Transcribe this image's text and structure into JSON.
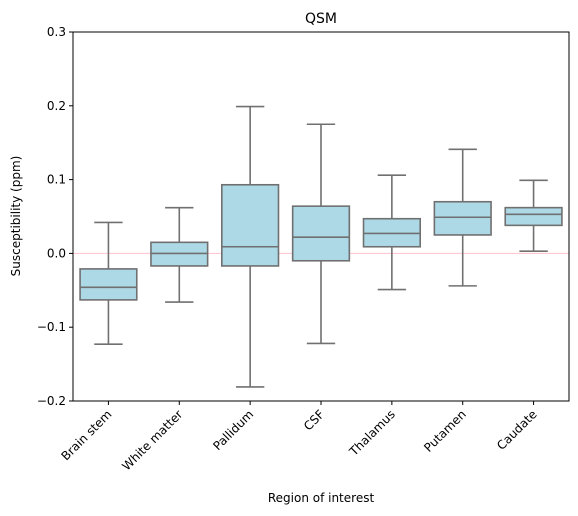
{
  "chart_data": {
    "type": "box",
    "title": "QSM",
    "xlabel": "Region of interest",
    "ylabel": "Susceptibility (ppm)",
    "ylim": [
      -0.2,
      0.3
    ],
    "yticks": [
      -0.2,
      -0.1,
      0.0,
      0.1,
      0.2,
      0.3
    ],
    "ytick_labels": [
      "−0.2",
      "−0.1",
      "0.0",
      "0.1",
      "0.2",
      "0.3"
    ],
    "reference_line": 0.0,
    "categories": [
      "Brain stem",
      "White matter",
      "Pallidum",
      "CSF",
      "Thalamus",
      "Putamen",
      "Caudate"
    ],
    "boxes": [
      {
        "whisker_low": -0.123,
        "q1": -0.063,
        "median": -0.046,
        "q3": -0.021,
        "whisker_high": 0.042
      },
      {
        "whisker_low": -0.066,
        "q1": -0.017,
        "median": 0.0,
        "q3": 0.015,
        "whisker_high": 0.062
      },
      {
        "whisker_low": -0.181,
        "q1": -0.017,
        "median": 0.009,
        "q3": 0.093,
        "whisker_high": 0.199
      },
      {
        "whisker_low": -0.122,
        "q1": -0.01,
        "median": 0.022,
        "q3": 0.064,
        "whisker_high": 0.175
      },
      {
        "whisker_low": -0.049,
        "q1": 0.009,
        "median": 0.027,
        "q3": 0.047,
        "whisker_high": 0.106
      },
      {
        "whisker_low": -0.044,
        "q1": 0.025,
        "median": 0.049,
        "q3": 0.07,
        "whisker_high": 0.141
      },
      {
        "whisker_low": 0.003,
        "q1": 0.038,
        "median": 0.053,
        "q3": 0.062,
        "whisker_high": 0.099
      }
    ],
    "colors": {
      "box_fill": "#add8e6",
      "box_edge": "#707070",
      "reference_line": "#ffc0cb"
    },
    "grid": false,
    "legend": "none"
  }
}
